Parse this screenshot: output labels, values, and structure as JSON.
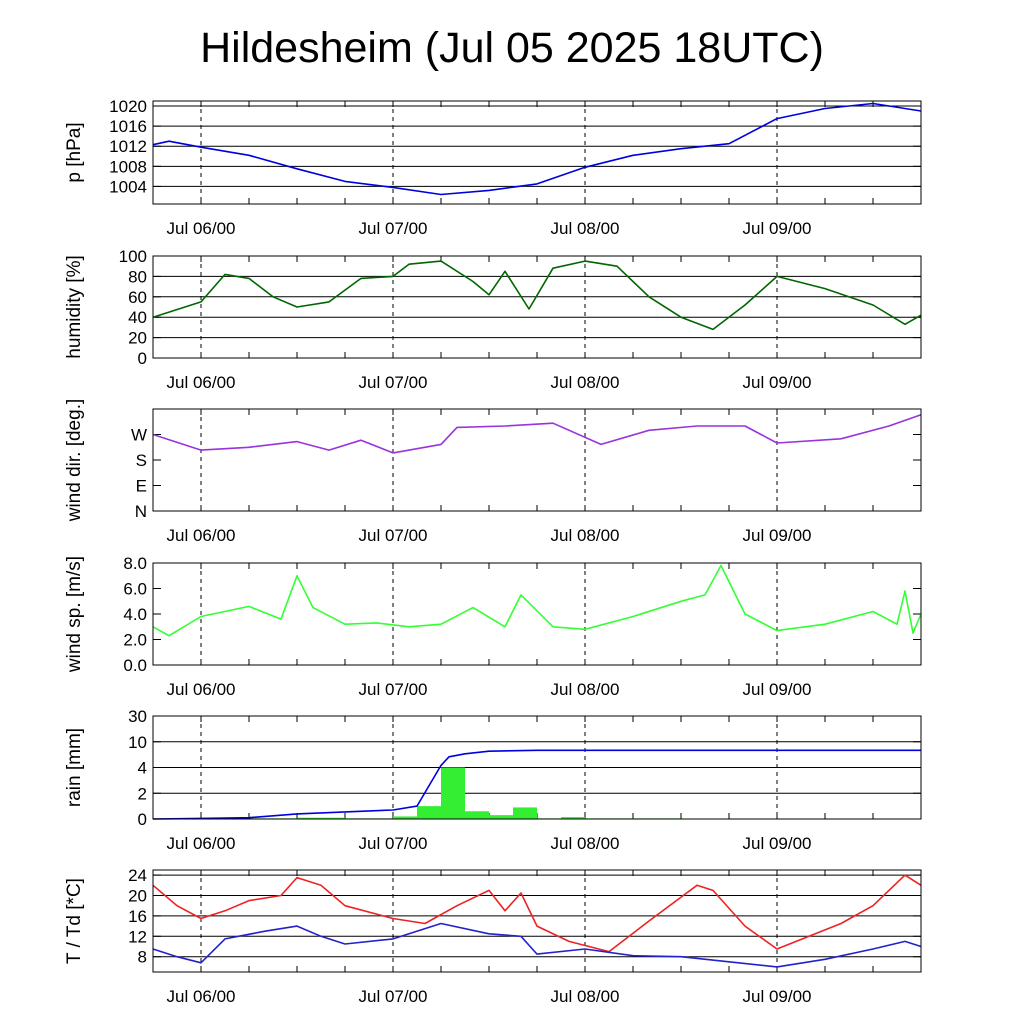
{
  "title": "Hildesheim (Jul 05 2025 18UTC)",
  "time_axis": {
    "start": "2025-07-05T18:00Z",
    "end": "2025-07-09T18:00Z",
    "tick_labels": [
      "Jul 06/00",
      "Jul 07/00",
      "Jul 08/00",
      "Jul 09/00"
    ],
    "tick_times": [
      "2025-07-06T00:00Z",
      "2025-07-07T00:00Z",
      "2025-07-08T00:00Z",
      "2025-07-09T00:00Z"
    ]
  },
  "chart_data": [
    {
      "type": "line",
      "ylabel": "p [hPa]",
      "ylim": [
        1000.5,
        1021
      ],
      "yticks": [
        1004,
        1008,
        1012,
        1016,
        1020
      ],
      "ytick_labels": [
        "1004",
        "1008",
        "1012",
        "1016",
        "1020"
      ],
      "grid": true,
      "series": [
        {
          "color": "#0000dd",
          "x": [
            "2025-07-05T18:00Z",
            "2025-07-05T20:00Z",
            "2025-07-06T00:00Z",
            "2025-07-06T06:00Z",
            "2025-07-06T12:00Z",
            "2025-07-06T18:00Z",
            "2025-07-07T00:00Z",
            "2025-07-07T06:00Z",
            "2025-07-07T12:00Z",
            "2025-07-07T18:00Z",
            "2025-07-08T00:00Z",
            "2025-07-08T06:00Z",
            "2025-07-08T12:00Z",
            "2025-07-08T18:00Z",
            "2025-07-09T00:00Z",
            "2025-07-09T06:00Z",
            "2025-07-09T12:00Z",
            "2025-07-09T18:00Z"
          ],
          "y": [
            1012.3,
            1013.0,
            1011.8,
            1010.2,
            1007.5,
            1005.0,
            1003.8,
            1002.4,
            1003.2,
            1004.5,
            1007.8,
            1010.2,
            1011.5,
            1012.5,
            1017.5,
            1019.5,
            1020.5,
            1019.0
          ]
        }
      ]
    },
    {
      "type": "line",
      "ylabel": "humidity [%]",
      "ylim": [
        0,
        100
      ],
      "yticks": [
        0,
        20,
        40,
        60,
        80,
        100
      ],
      "ytick_labels": [
        "0",
        "20",
        "40",
        "60",
        "80",
        "100"
      ],
      "grid": true,
      "series": [
        {
          "color": "#006600",
          "x": [
            "2025-07-05T18:00Z",
            "2025-07-06T00:00Z",
            "2025-07-06T03:00Z",
            "2025-07-06T06:00Z",
            "2025-07-06T09:00Z",
            "2025-07-06T12:00Z",
            "2025-07-06T16:00Z",
            "2025-07-06T20:00Z",
            "2025-07-07T00:00Z",
            "2025-07-07T02:00Z",
            "2025-07-07T06:00Z",
            "2025-07-07T10:00Z",
            "2025-07-07T12:00Z",
            "2025-07-07T14:00Z",
            "2025-07-07T17:00Z",
            "2025-07-07T20:00Z",
            "2025-07-08T00:00Z",
            "2025-07-08T04:00Z",
            "2025-07-08T08:00Z",
            "2025-07-08T12:00Z",
            "2025-07-08T16:00Z",
            "2025-07-08T20:00Z",
            "2025-07-09T00:00Z",
            "2025-07-09T06:00Z",
            "2025-07-09T12:00Z",
            "2025-07-09T16:00Z",
            "2025-07-09T18:00Z"
          ],
          "y": [
            40,
            55,
            82,
            78,
            60,
            50,
            55,
            78,
            80,
            92,
            95,
            75,
            62,
            85,
            48,
            88,
            95,
            90,
            60,
            40,
            28,
            52,
            80,
            68,
            52,
            33,
            42
          ]
        }
      ]
    },
    {
      "type": "line",
      "ylabel": "wind dir. [deg.]",
      "ylim": [
        0,
        360
      ],
      "yticks": [
        0,
        90,
        180,
        270
      ],
      "ytick_labels": [
        "N",
        "E",
        "S",
        "W"
      ],
      "grid": false,
      "series": [
        {
          "color": "#9933dd",
          "x": [
            "2025-07-05T18:00Z",
            "2025-07-06T00:00Z",
            "2025-07-06T06:00Z",
            "2025-07-06T12:00Z",
            "2025-07-06T16:00Z",
            "2025-07-06T20:00Z",
            "2025-07-07T00:00Z",
            "2025-07-07T06:00Z",
            "2025-07-07T08:00Z",
            "2025-07-07T14:00Z",
            "2025-07-07T20:00Z",
            "2025-07-08T02:00Z",
            "2025-07-08T08:00Z",
            "2025-07-08T14:00Z",
            "2025-07-08T20:00Z",
            "2025-07-09T00:00Z",
            "2025-07-09T08:00Z",
            "2025-07-09T14:00Z",
            "2025-07-09T18:00Z"
          ],
          "y": [
            270,
            215,
            225,
            245,
            215,
            250,
            205,
            235,
            295,
            300,
            310,
            235,
            285,
            300,
            300,
            240,
            255,
            300,
            340
          ]
        }
      ]
    },
    {
      "type": "line",
      "ylabel": "wind sp. [m/s]",
      "ylim": [
        0,
        8
      ],
      "yticks": [
        0,
        2,
        4,
        6,
        8
      ],
      "ytick_labels": [
        "0.0",
        "2.0",
        "4.0",
        "6.0",
        "8.0"
      ],
      "grid": false,
      "series": [
        {
          "color": "#33ff33",
          "x": [
            "2025-07-05T18:00Z",
            "2025-07-05T20:00Z",
            "2025-07-06T00:00Z",
            "2025-07-06T06:00Z",
            "2025-07-06T10:00Z",
            "2025-07-06T12:00Z",
            "2025-07-06T14:00Z",
            "2025-07-06T18:00Z",
            "2025-07-06T22:00Z",
            "2025-07-07T02:00Z",
            "2025-07-07T06:00Z",
            "2025-07-07T10:00Z",
            "2025-07-07T14:00Z",
            "2025-07-07T16:00Z",
            "2025-07-07T20:00Z",
            "2025-07-08T00:00Z",
            "2025-07-08T06:00Z",
            "2025-07-08T12:00Z",
            "2025-07-08T15:00Z",
            "2025-07-08T17:00Z",
            "2025-07-08T20:00Z",
            "2025-07-09T00:00Z",
            "2025-07-09T06:00Z",
            "2025-07-09T12:00Z",
            "2025-07-09T15:00Z",
            "2025-07-09T16:00Z",
            "2025-07-09T17:00Z",
            "2025-07-09T18:00Z"
          ],
          "y": [
            3.0,
            2.3,
            3.8,
            4.6,
            3.6,
            7.0,
            4.5,
            3.2,
            3.3,
            3.0,
            3.2,
            4.5,
            3.0,
            5.5,
            3.0,
            2.8,
            3.8,
            5.0,
            5.5,
            7.8,
            4.0,
            2.7,
            3.2,
            4.2,
            3.2,
            5.8,
            2.5,
            4.0
          ]
        }
      ]
    },
    {
      "type": "bar",
      "ylabel": "rain [mm]",
      "yscale": "nonlinear",
      "ylim": [
        0,
        30
      ],
      "yticks": [
        0,
        2,
        4,
        10,
        30
      ],
      "ytick_labels": [
        "0",
        "2",
        "4",
        "10",
        "30"
      ],
      "grid": true,
      "bars": {
        "color": "#33ee33",
        "x_start": [
          "2025-07-05T18:00Z",
          "2025-07-06T00:00Z",
          "2025-07-06T06:00Z",
          "2025-07-06T12:00Z",
          "2025-07-06T18:00Z",
          "2025-07-07T00:00Z",
          "2025-07-07T03:00Z",
          "2025-07-07T06:00Z",
          "2025-07-07T09:00Z",
          "2025-07-07T12:00Z",
          "2025-07-07T15:00Z",
          "2025-07-07T18:00Z",
          "2025-07-07T21:00Z",
          "2025-07-08T00:00Z",
          "2025-07-08T06:00Z"
        ],
        "x_end": [
          "2025-07-06T00:00Z",
          "2025-07-06T06:00Z",
          "2025-07-06T12:00Z",
          "2025-07-06T18:00Z",
          "2025-07-07T00:00Z",
          "2025-07-07T03:00Z",
          "2025-07-07T06:00Z",
          "2025-07-07T09:00Z",
          "2025-07-07T12:00Z",
          "2025-07-07T15:00Z",
          "2025-07-07T18:00Z",
          "2025-07-07T21:00Z",
          "2025-07-08T00:00Z",
          "2025-07-08T06:00Z",
          "2025-07-08T12:00Z"
        ],
        "values": [
          0.05,
          0.05,
          0.05,
          0.1,
          0.05,
          0.2,
          1.0,
          4.0,
          0.6,
          0.3,
          0.9,
          0.05,
          0.15,
          0.05,
          0.05
        ]
      },
      "series": [
        {
          "color": "#0000dd",
          "x": [
            "2025-07-05T18:00Z",
            "2025-07-06T00:00Z",
            "2025-07-06T06:00Z",
            "2025-07-06T12:00Z",
            "2025-07-06T18:00Z",
            "2025-07-07T00:00Z",
            "2025-07-07T03:00Z",
            "2025-07-07T06:00Z",
            "2025-07-07T07:00Z",
            "2025-07-07T09:00Z",
            "2025-07-07T12:00Z",
            "2025-07-07T18:00Z",
            "2025-07-08T00:00Z",
            "2025-07-09T18:00Z"
          ],
          "y": [
            0,
            0.05,
            0.1,
            0.4,
            0.55,
            0.7,
            1.0,
            4.5,
            6.5,
            7.2,
            7.8,
            8.0,
            8.0,
            8.0
          ]
        }
      ]
    },
    {
      "type": "line",
      "ylabel": "T / Td [*C]",
      "ylim": [
        5,
        25
      ],
      "yticks": [
        8,
        12,
        16,
        20,
        24
      ],
      "ytick_labels": [
        "8",
        "12",
        "16",
        "20",
        "24"
      ],
      "grid": true,
      "series": [
        {
          "color": "#ee2222",
          "x": [
            "2025-07-05T18:00Z",
            "2025-07-05T21:00Z",
            "2025-07-06T00:00Z",
            "2025-07-06T03:00Z",
            "2025-07-06T06:00Z",
            "2025-07-06T10:00Z",
            "2025-07-06T12:00Z",
            "2025-07-06T15:00Z",
            "2025-07-06T18:00Z",
            "2025-07-07T00:00Z",
            "2025-07-07T04:00Z",
            "2025-07-07T08:00Z",
            "2025-07-07T12:00Z",
            "2025-07-07T14:00Z",
            "2025-07-07T16:00Z",
            "2025-07-07T18:00Z",
            "2025-07-07T22:00Z",
            "2025-07-08T03:00Z",
            "2025-07-08T08:00Z",
            "2025-07-08T14:00Z",
            "2025-07-08T16:00Z",
            "2025-07-08T20:00Z",
            "2025-07-09T00:00Z",
            "2025-07-09T04:00Z",
            "2025-07-09T08:00Z",
            "2025-07-09T12:00Z",
            "2025-07-09T16:00Z",
            "2025-07-09T18:00Z"
          ],
          "y": [
            22,
            18,
            15.5,
            17,
            19,
            20,
            23.5,
            22,
            18,
            15.5,
            14.5,
            18,
            21,
            17,
            20.5,
            14,
            11,
            9,
            15,
            22,
            21,
            14,
            9.5,
            12,
            14.5,
            18,
            24,
            22
          ]
        },
        {
          "color": "#2222cc",
          "x": [
            "2025-07-05T18:00Z",
            "2025-07-05T21:00Z",
            "2025-07-06T00:00Z",
            "2025-07-06T03:00Z",
            "2025-07-06T08:00Z",
            "2025-07-06T12:00Z",
            "2025-07-06T15:00Z",
            "2025-07-06T18:00Z",
            "2025-07-07T00:00Z",
            "2025-07-07T06:00Z",
            "2025-07-07T12:00Z",
            "2025-07-07T16:00Z",
            "2025-07-07T18:00Z",
            "2025-07-08T00:00Z",
            "2025-07-08T06:00Z",
            "2025-07-08T12:00Z",
            "2025-07-08T18:00Z",
            "2025-07-09T00:00Z",
            "2025-07-09T06:00Z",
            "2025-07-09T12:00Z",
            "2025-07-09T16:00Z",
            "2025-07-09T18:00Z"
          ],
          "y": [
            9.5,
            8,
            6.8,
            11.5,
            13,
            14,
            12,
            10.5,
            11.5,
            14.5,
            12.5,
            12,
            8.5,
            9.5,
            8.2,
            8,
            7,
            6,
            7.5,
            9.5,
            11,
            10
          ]
        }
      ]
    }
  ]
}
